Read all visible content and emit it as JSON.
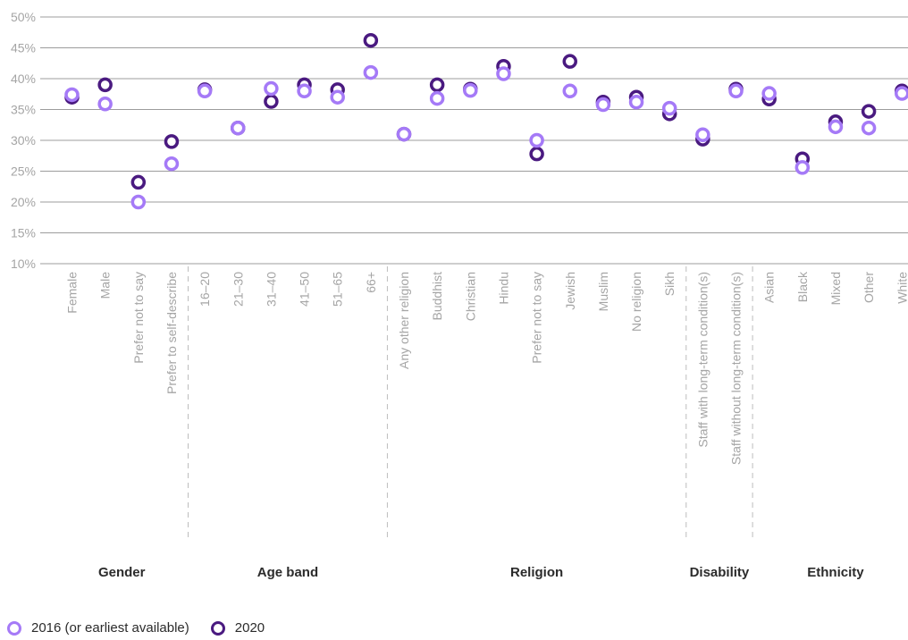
{
  "chart_data": {
    "type": "scatter",
    "ylim": [
      10,
      50
    ],
    "yticks": [
      "10%",
      "15%",
      "20%",
      "25%",
      "30%",
      "35%",
      "40%",
      "45%",
      "50%"
    ],
    "ytick_values": [
      10,
      15,
      20,
      25,
      30,
      35,
      40,
      45,
      50
    ],
    "categories": [
      "Female",
      "Male",
      "Prefer not to say",
      "Prefer to self-describe",
      "16–20",
      "21–30",
      "31–40",
      "41–50",
      "51–65",
      "66+",
      "Any other religion",
      "Buddhist",
      "Christian",
      "Hindu",
      "Prefer not to say",
      "Jewish",
      "Muslim",
      "No religion",
      "Sikh",
      "Staff with long-term condition(s)",
      "Staff without long-term condition(s)",
      "Asian",
      "Black",
      "Mixed",
      "Other",
      "White"
    ],
    "groups": [
      {
        "label": "Gender",
        "start": 0,
        "end": 3
      },
      {
        "label": "Age band",
        "start": 4,
        "end": 9
      },
      {
        "label": "Religion",
        "start": 10,
        "end": 18
      },
      {
        "label": "Disability",
        "start": 19,
        "end": 20
      },
      {
        "label": "Ethnicity",
        "start": 21,
        "end": 25
      }
    ],
    "series": [
      {
        "name": "2020",
        "color": "#4a1a80",
        "values": [
          37.0,
          39.0,
          23.2,
          29.8,
          38.2,
          32.0,
          36.3,
          39.0,
          38.2,
          46.2,
          31.0,
          39.0,
          38.3,
          42.0,
          27.8,
          42.8,
          36.2,
          37.0,
          34.3,
          30.2,
          38.3,
          36.7,
          27.0,
          33.0,
          34.7,
          38.0
        ]
      },
      {
        "name": "2016 (or earliest available)",
        "color": "#a57af7",
        "values": [
          37.4,
          35.9,
          20.0,
          26.2,
          38.0,
          32.0,
          38.4,
          38.0,
          37.0,
          41.0,
          31.0,
          36.8,
          38.1,
          40.8,
          30.0,
          38.0,
          35.8,
          36.2,
          35.2,
          30.9,
          38.0,
          37.6,
          25.6,
          32.2,
          32.0,
          37.6
        ]
      }
    ],
    "legend": {
      "position": "bottom-left"
    },
    "grid": true
  }
}
